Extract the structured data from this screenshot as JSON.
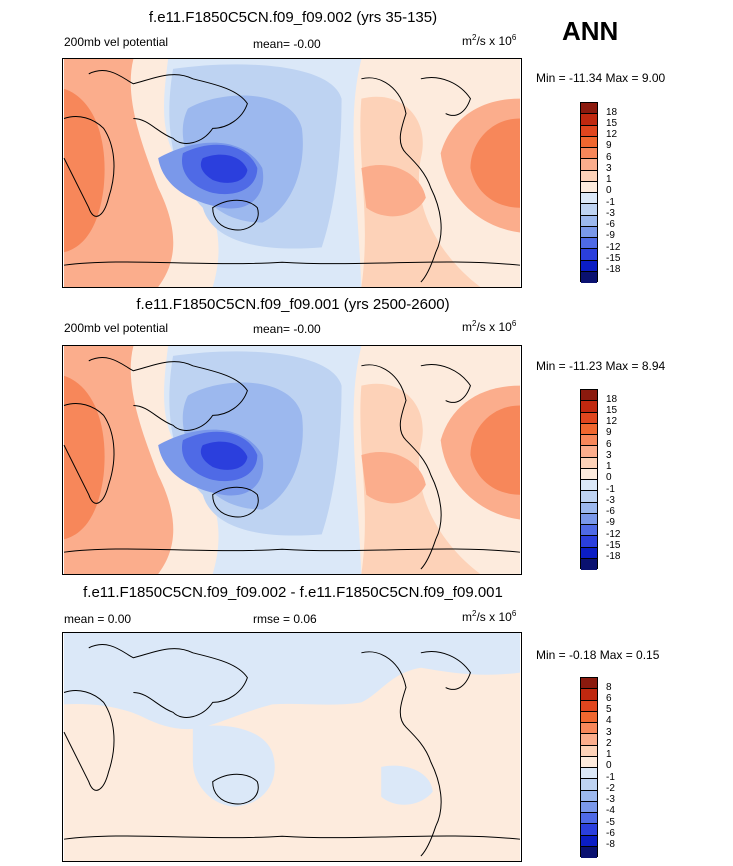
{
  "season": "ANN",
  "units": "m²/s x 10⁶",
  "panels": [
    {
      "title": "f.e11.F1850C5CN.f09_f09.002 (yrs 35-135)",
      "left_label": "200mb vel potential",
      "center_label": "mean=  -0.00",
      "minmax": "Min = -11.34 Max =   9.00",
      "colorbar_labels": [
        "18",
        "15",
        "12",
        "9",
        "6",
        "3",
        "1",
        "0",
        "-1",
        "-3",
        "-6",
        "-9",
        "-12",
        "-15",
        "-18"
      ]
    },
    {
      "title": "f.e11.F1850C5CN.f09_f09.001 (yrs 2500-2600)",
      "left_label": "200mb vel potential",
      "center_label": "mean=  -0.00",
      "minmax": "Min = -11.23 Max =   8.94",
      "colorbar_labels": [
        "18",
        "15",
        "12",
        "9",
        "6",
        "3",
        "1",
        "0",
        "-1",
        "-3",
        "-6",
        "-9",
        "-12",
        "-15",
        "-18"
      ]
    },
    {
      "title": "f.e11.F1850C5CN.f09_f09.002 - f.e11.F1850C5CN.f09_f09.001",
      "left_label": "mean =  0.00",
      "center_label": "rmse =  0.06",
      "minmax": "Min =  -0.18 Max =   0.15",
      "colorbar_labels": [
        "8",
        "6",
        "5",
        "4",
        "3",
        "2",
        "1",
        "0",
        "-1",
        "-2",
        "-3",
        "-4",
        "-5",
        "-6",
        "-8"
      ]
    }
  ],
  "colors": {
    "levels": [
      "#8b1a0e",
      "#c0280f",
      "#e0461e",
      "#f0672f",
      "#f7875a",
      "#fbad8c",
      "#fdd2b8",
      "#fdebdd",
      "#dbe8f8",
      "#bed3f2",
      "#9cb8ee",
      "#7a98ea",
      "#4f6ae6",
      "#2b3fdd",
      "#0b1dc4",
      "#0a1170"
    ]
  }
}
